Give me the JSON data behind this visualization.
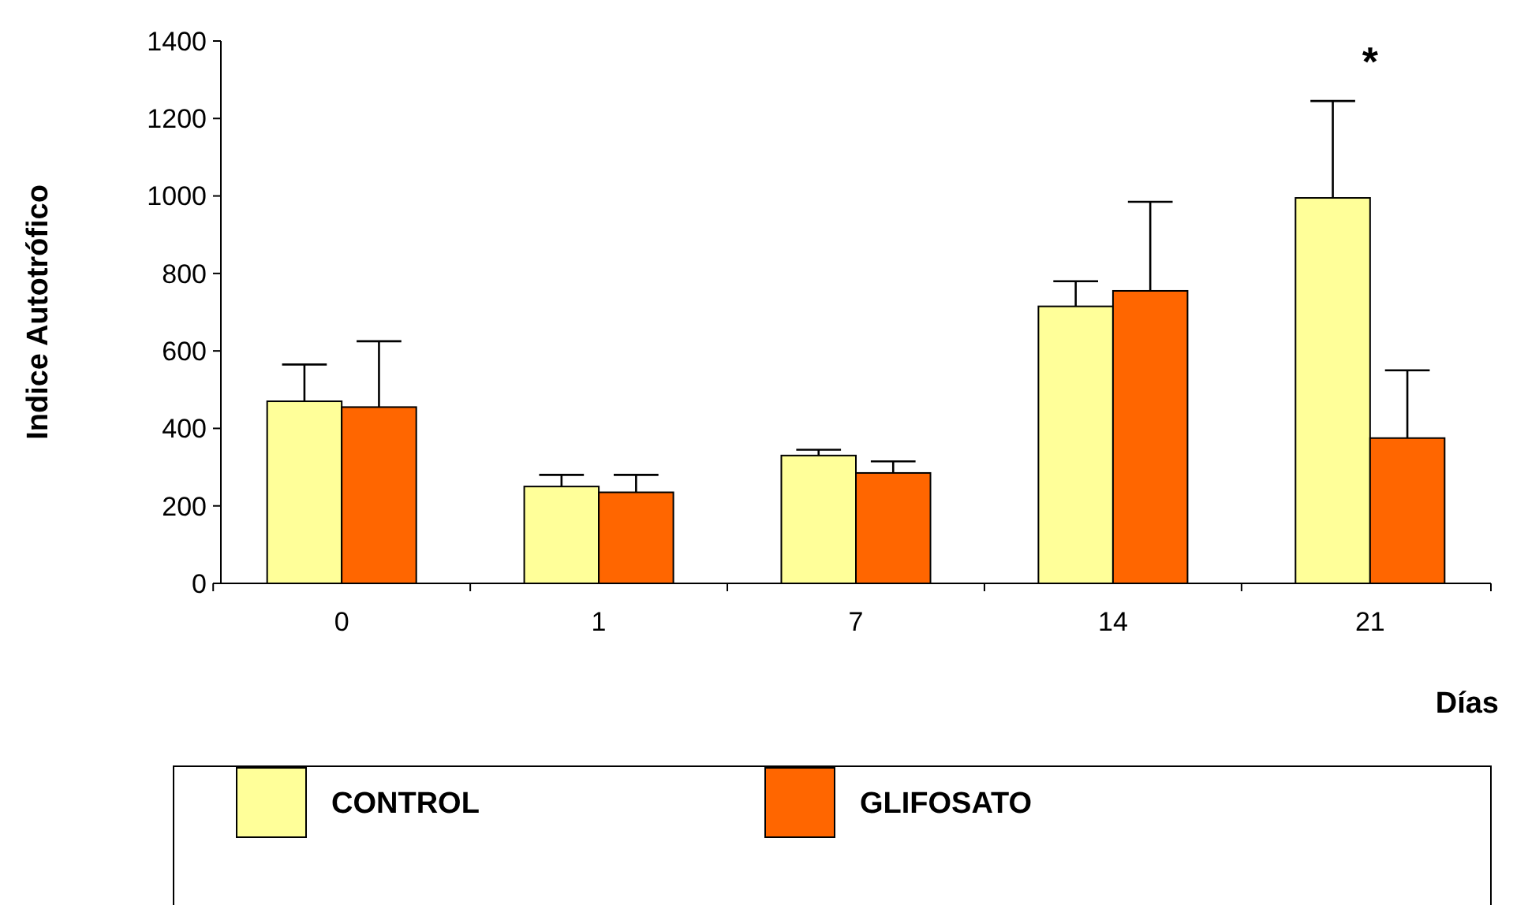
{
  "chart_data": {
    "type": "bar",
    "ylabel": "Indice Autotrófico",
    "xlabel": "Días",
    "categories": [
      "0",
      "1",
      "7",
      "14",
      "21"
    ],
    "series": [
      {
        "name": "CONTROL",
        "color": "#ffff99",
        "values": [
          470,
          250,
          330,
          715,
          995
        ],
        "errors": [
          [
            470,
            565
          ],
          [
            250,
            280
          ],
          [
            330,
            345
          ],
          [
            715,
            780
          ],
          [
            995,
            1245
          ]
        ]
      },
      {
        "name": "GLIFOSATO",
        "color": "#ff6600",
        "values": [
          455,
          235,
          285,
          755,
          375
        ],
        "errors": [
          [
            455,
            625
          ],
          [
            235,
            280
          ],
          [
            285,
            315
          ],
          [
            755,
            985
          ],
          [
            375,
            550
          ]
        ]
      }
    ],
    "ylim": [
      0,
      1400
    ],
    "yticks": [
      0,
      200,
      400,
      600,
      800,
      1000,
      1200,
      1400
    ],
    "grid": false,
    "legend": "bottom",
    "annotations": [
      "*"
    ]
  }
}
